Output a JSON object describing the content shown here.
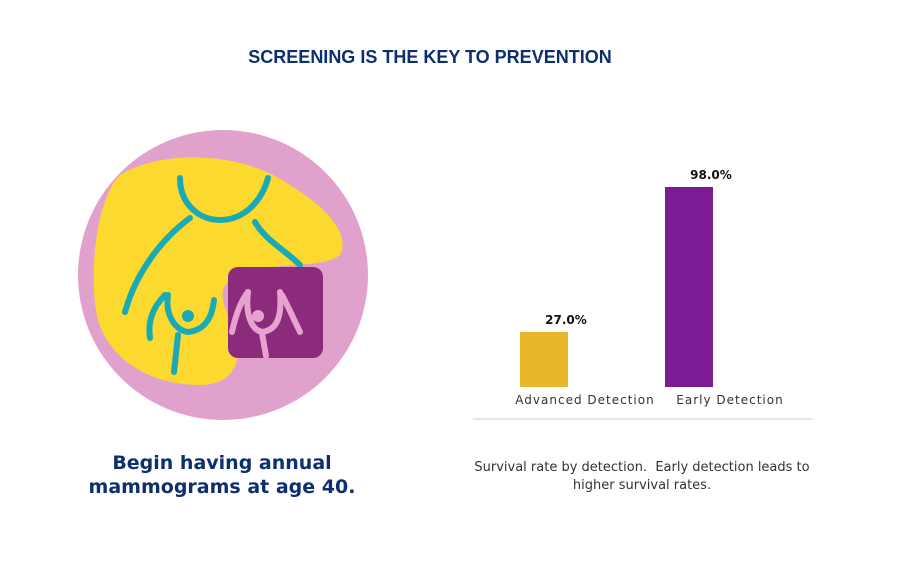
{
  "title": "SCREENING IS THE KEY TO PREVENTION",
  "tagline": "Begin having annual mammograms at age 40.",
  "chart_data": {
    "type": "bar",
    "categories": [
      "Advanced Detection",
      "Early Detection"
    ],
    "values": [
      27.0,
      98.0
    ],
    "value_labels": [
      "27.0%",
      "98.0%"
    ],
    "colors": [
      "#e8b82a",
      "#7b1c94"
    ],
    "caption": "Survival rate by detection.  Early detection leads to higher survival rates."
  }
}
